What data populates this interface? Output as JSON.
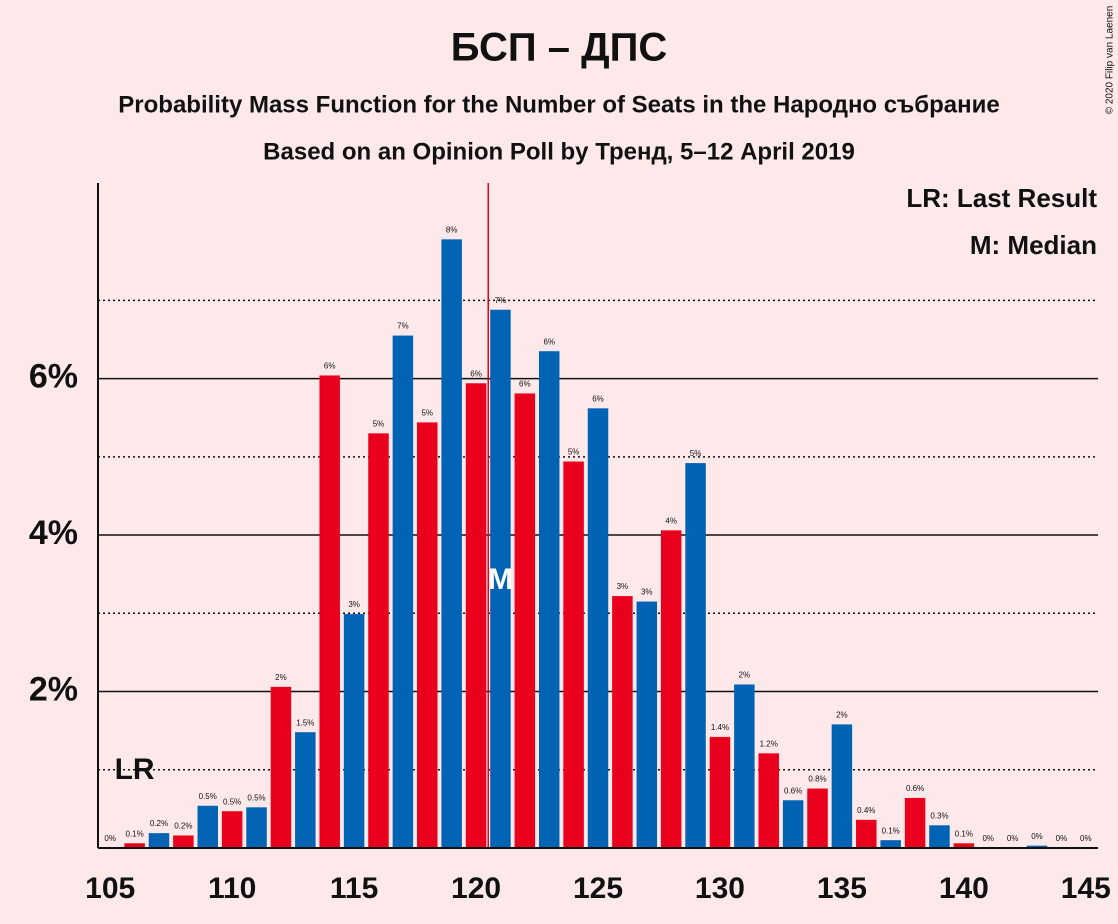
{
  "chart_data": {
    "type": "bar",
    "title": "БСП – ДПС",
    "subtitle": "Probability Mass Function for the Number of Seats in the Народно събрание",
    "subtitle2": "Based on an Opinion Poll by Тренд, 5–12 April 2019",
    "copyright": "© 2020 Filip van Laenen",
    "legend": [
      "LR: Last Result",
      "M: Median"
    ],
    "x": [
      105,
      106,
      107,
      108,
      109,
      110,
      111,
      112,
      113,
      114,
      115,
      116,
      117,
      118,
      119,
      120,
      121,
      122,
      123,
      124,
      125,
      126,
      127,
      128,
      129,
      130,
      131,
      132,
      133,
      134,
      135,
      136,
      137,
      138,
      139,
      140,
      141,
      142,
      143,
      144,
      145
    ],
    "values": [
      0,
      0.06,
      0.19,
      0.16,
      0.54,
      0.47,
      0.52,
      2.06,
      1.48,
      6.04,
      2.99,
      5.3,
      6.55,
      5.44,
      7.78,
      5.94,
      6.88,
      5.81,
      6.35,
      4.94,
      5.62,
      3.22,
      3.15,
      4.06,
      4.92,
      1.42,
      2.09,
      1.21,
      0.61,
      0.76,
      1.58,
      0.36,
      0.1,
      0.64,
      0.29,
      0.06,
      0,
      0,
      0.03,
      0,
      0
    ],
    "value_labels": [
      "0%",
      "0.1%",
      "0.2%",
      "0.2%",
      "0.5%",
      "0.5%",
      "0.5%",
      "2%",
      "1.5%",
      "6%",
      "3%",
      "5%",
      "7%",
      "5%",
      "8%",
      "6%",
      "7%",
      "6%",
      "6%",
      "5%",
      "6%",
      "3%",
      "3%",
      "4%",
      "5%",
      "1.4%",
      "2%",
      "1.2%",
      "0.6%",
      "0.8%",
      "2%",
      "0.4%",
      "0.1%",
      "0.6%",
      "0.3%",
      "0.1%",
      "0%",
      "0%",
      "0%",
      "0%",
      "0%"
    ],
    "colors_by_parity": {
      "even": "#e8001c",
      "odd": "#0063b4"
    },
    "xlim": [
      104.5,
      145.5
    ],
    "xticks": [
      105,
      110,
      115,
      120,
      125,
      130,
      135,
      140,
      145
    ],
    "ylim": [
      0,
      8.5
    ],
    "yticks": [
      {
        "value": 2,
        "label": "2%"
      },
      {
        "value": 4,
        "label": "4%"
      },
      {
        "value": 6,
        "label": "6%"
      }
    ],
    "yminor": [
      1,
      3,
      5,
      7
    ],
    "threshold": 120.5,
    "threshold_color": "#e8001c",
    "annotations": [
      {
        "text": "LR",
        "x": 106
      },
      {
        "text": "M",
        "x": 121
      }
    ]
  }
}
